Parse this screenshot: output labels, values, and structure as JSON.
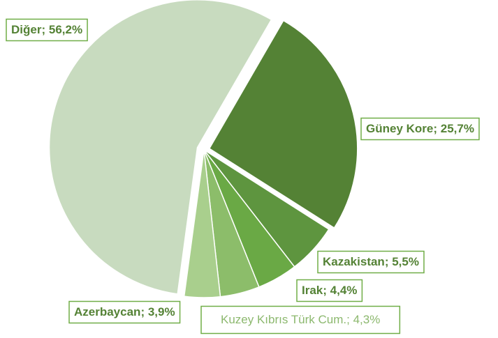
{
  "chart_data": {
    "type": "pie",
    "categories": [
      "Güney Kore",
      "Kazakistan",
      "Irak",
      "Kuzey Kıbrıs Türk Cum.",
      "Azerbaycan",
      "Diğer"
    ],
    "values": [
      25.7,
      5.5,
      4.4,
      4.3,
      3.9,
      56.2
    ],
    "value_labels": [
      "25,7%",
      "5,5%",
      "4,4%",
      "4,3%",
      "3,9%",
      "56,2%"
    ],
    "label_separator": "; ",
    "colors": [
      "#548235",
      "#5e953f",
      "#6aa945",
      "#8cbd6a",
      "#a9cf8d",
      "#c8dbbf"
    ]
  }
}
